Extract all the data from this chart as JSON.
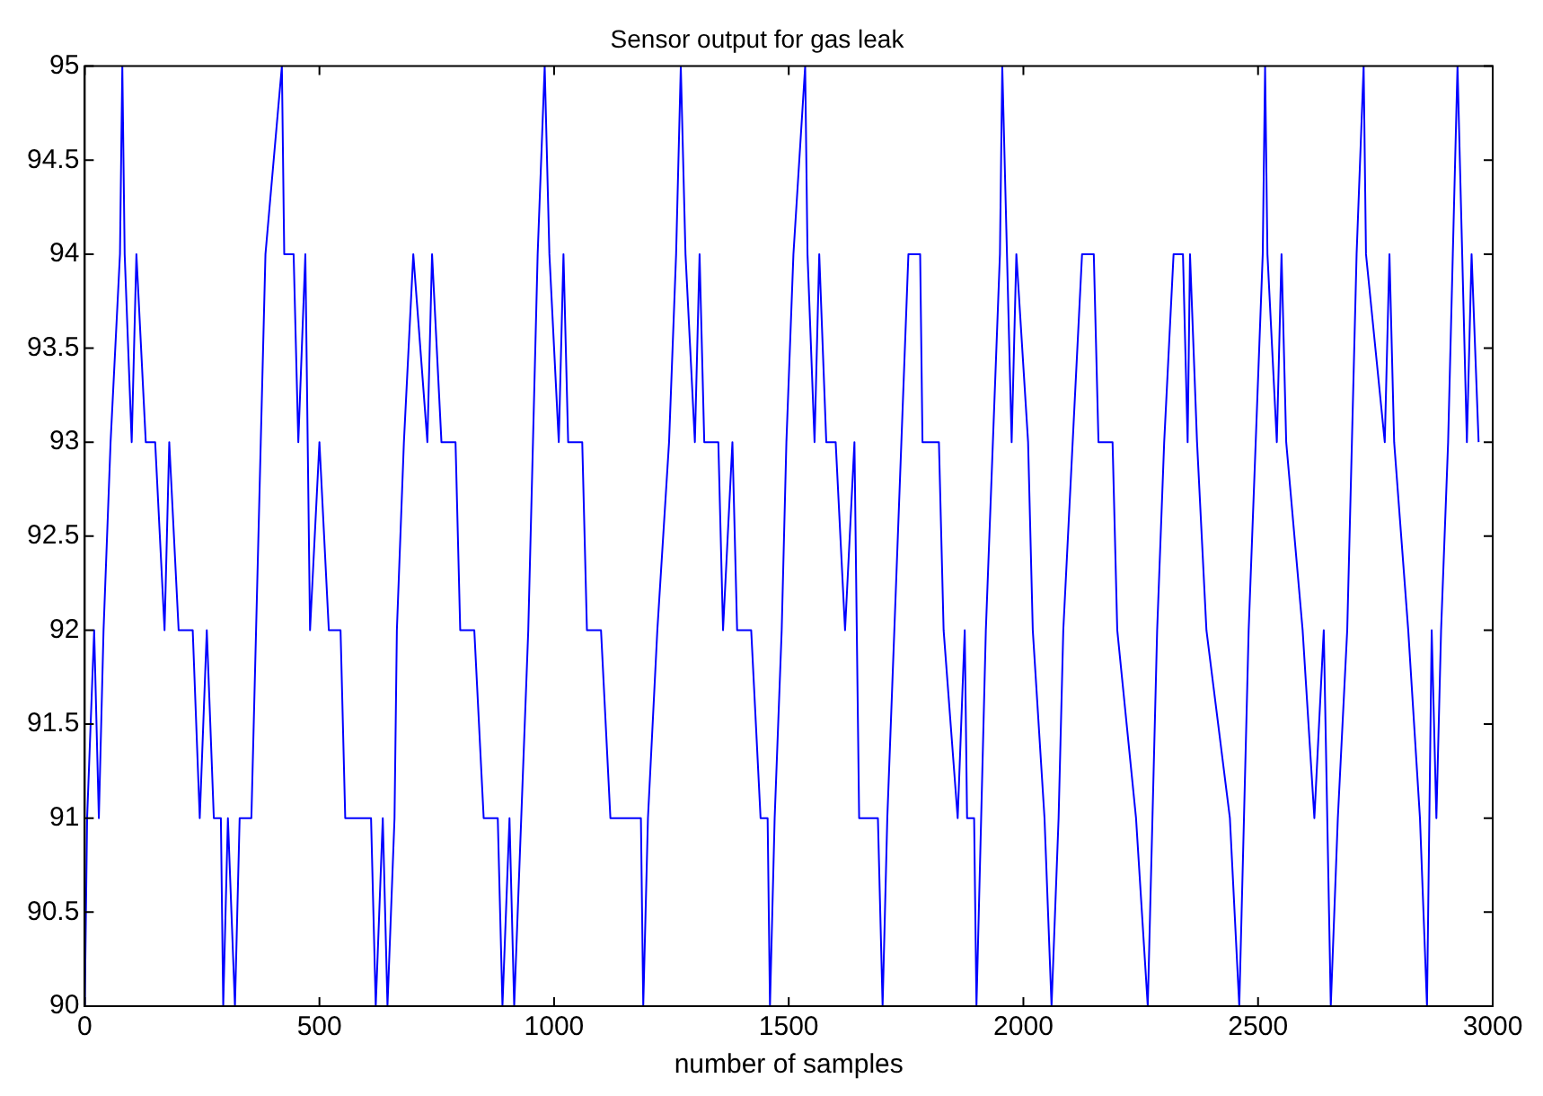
{
  "chart_data": {
    "type": "line",
    "title": "Sensor output for gas leak",
    "xlabel": "number of samples",
    "xlim": [
      0,
      3000
    ],
    "xticks": [
      0,
      500,
      1000,
      1500,
      2000,
      2500,
      3000
    ],
    "ylim": [
      90,
      95
    ],
    "yticks": [
      90,
      90.5,
      91,
      91.5,
      92,
      92.5,
      93,
      93.5,
      94,
      94.5,
      95
    ],
    "grid": false,
    "legend": false,
    "marker": "none",
    "line_style": "solid",
    "series": [
      {
        "color": "#0000ff",
        "x": [
          0,
          5,
          20,
          30,
          40,
          55,
          75,
          80,
          85,
          100,
          110,
          130,
          150,
          170,
          180,
          200,
          230,
          245,
          260,
          275,
          290,
          295,
          305,
          320,
          330,
          355,
          365,
          375,
          385,
          420,
          425,
          445,
          455,
          470,
          480,
          500,
          520,
          545,
          555,
          580,
          610,
          620,
          635,
          645,
          660,
          665,
          680,
          700,
          730,
          740,
          760,
          790,
          800,
          830,
          850,
          880,
          890,
          905,
          915,
          930,
          945,
          955,
          965,
          980,
          990,
          1010,
          1020,
          1030,
          1060,
          1070,
          1100,
          1120,
          1150,
          1185,
          1190,
          1200,
          1220,
          1245,
          1260,
          1270,
          1280,
          1300,
          1310,
          1320,
          1350,
          1360,
          1380,
          1390,
          1420,
          1440,
          1455,
          1460,
          1470,
          1485,
          1495,
          1510,
          1535,
          1540,
          1555,
          1565,
          1580,
          1600,
          1620,
          1640,
          1650,
          1690,
          1700,
          1710,
          1725,
          1740,
          1755,
          1780,
          1785,
          1820,
          1830,
          1860,
          1875,
          1880,
          1895,
          1900,
          1910,
          1920,
          1935,
          1950,
          1955,
          1965,
          1975,
          1985,
          2010,
          2020,
          2045,
          2060,
          2075,
          2085,
          2105,
          2125,
          2150,
          2160,
          2190,
          2200,
          2240,
          2265,
          2275,
          2285,
          2300,
          2320,
          2340,
          2350,
          2355,
          2370,
          2390,
          2440,
          2460,
          2470,
          2480,
          2495,
          2510,
          2515,
          2520,
          2540,
          2550,
          2560,
          2595,
          2620,
          2640,
          2655,
          2670,
          2690,
          2700,
          2710,
          2725,
          2730,
          2770,
          2780,
          2790,
          2820,
          2845,
          2860,
          2870,
          2880,
          2890,
          2905,
          2915,
          2925,
          2935,
          2945,
          2955,
          2970
        ],
        "values": [
          90,
          91,
          92,
          91,
          92,
          93,
          94,
          95,
          94,
          93,
          94,
          93,
          93,
          92,
          93,
          92,
          92,
          91,
          92,
          91,
          91,
          90,
          91,
          90,
          91,
          91,
          92,
          93,
          94,
          95,
          94,
          94,
          93,
          94,
          92,
          93,
          92,
          92,
          91,
          91,
          91,
          90,
          91,
          90,
          91,
          92,
          93,
          94,
          93,
          94,
          93,
          93,
          92,
          92,
          91,
          91,
          90,
          91,
          90,
          91,
          92,
          93,
          94,
          95,
          94,
          93,
          94,
          93,
          93,
          92,
          92,
          91,
          91,
          91,
          90,
          91,
          92,
          93,
          94,
          95,
          94,
          93,
          94,
          93,
          93,
          92,
          93,
          92,
          92,
          91,
          91,
          90,
          91,
          92,
          93,
          94,
          95,
          94,
          93,
          94,
          93,
          93,
          92,
          93,
          91,
          91,
          90,
          91,
          92,
          93,
          94,
          94,
          93,
          93,
          92,
          91,
          92,
          91,
          91,
          90,
          91,
          92,
          93,
          94,
          95,
          94,
          93,
          94,
          93,
          92,
          91,
          90,
          91,
          92,
          93,
          94,
          94,
          93,
          93,
          92,
          91,
          90,
          91,
          92,
          93,
          94,
          94,
          93,
          94,
          93,
          92,
          91,
          90,
          91,
          92,
          93,
          94,
          95,
          94,
          93,
          94,
          93,
          92,
          91,
          92,
          90,
          91,
          92,
          93,
          94,
          95,
          94,
          93,
          94,
          93,
          92,
          91,
          90,
          92,
          91,
          92,
          93,
          94,
          95,
          94,
          93,
          94,
          93
        ]
      }
    ]
  }
}
